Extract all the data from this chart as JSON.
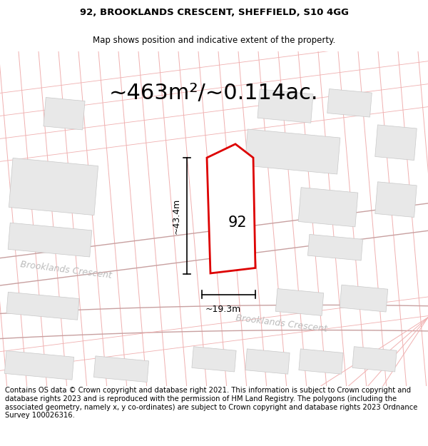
{
  "title_line1": "92, BROOKLANDS CRESCENT, SHEFFIELD, S10 4GG",
  "title_line2": "Map shows position and indicative extent of the property.",
  "area_label": "~463m²/~0.114ac.",
  "width_label": "~19.3m",
  "height_label": "~43.4m",
  "house_number": "92",
  "street_label1": "Brooklands Crescent",
  "street_label2": "Brooklands Crescent",
  "footer_text": "Contains OS data © Crown copyright and database right 2021. This information is subject to Crown copyright and database rights 2023 and is reproduced with the permission of HM Land Registry. The polygons (including the associated geometry, namely x, y co-ordinates) are subject to Crown copyright and database rights 2023 Ordnance Survey 100026316.",
  "bg_color": "#ffffff",
  "map_bg": "#ffffff",
  "plot_edge_color": "#dd0000",
  "bldg_fill": "#e8e8e8",
  "bldg_edge": "#c8c8c8",
  "line_color": "#f0b0b0",
  "road_line_color": "#c8a0a0",
  "street_color": "#bbbbbb",
  "title_fontsize": 9.5,
  "subtitle_fontsize": 8.5,
  "area_fontsize": 22,
  "footer_fontsize": 7.2
}
